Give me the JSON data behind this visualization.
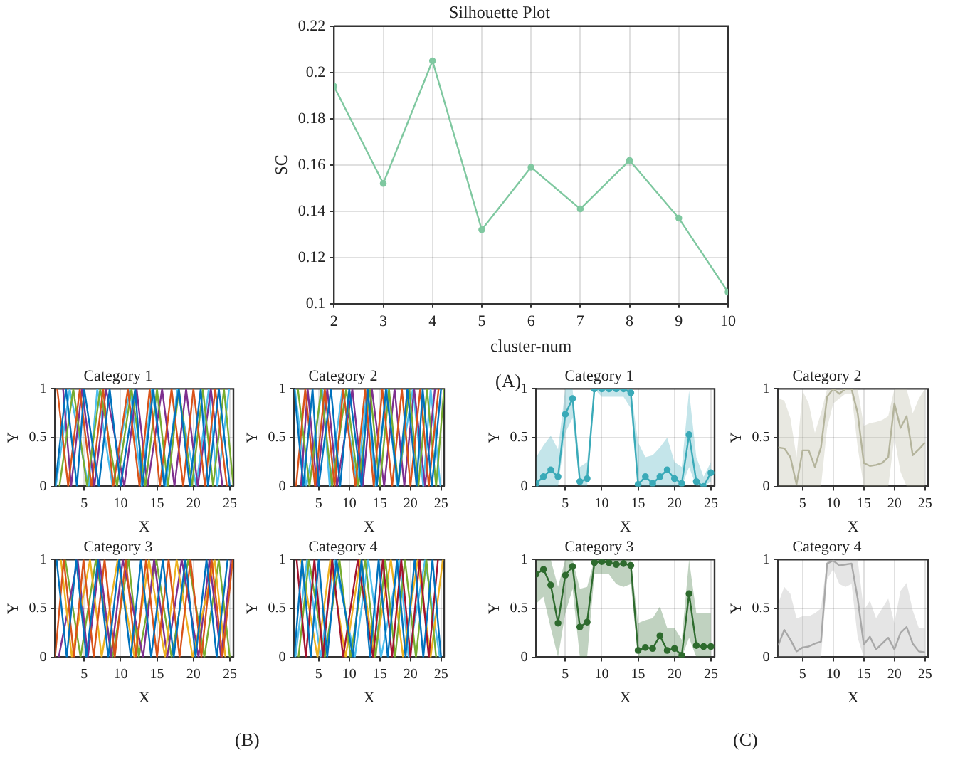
{
  "chart_data": [
    {
      "type": "line",
      "title": "Silhouette Plot",
      "xlabel": "cluster-num",
      "ylabel": "SC",
      "x": [
        2,
        3,
        4,
        5,
        6,
        7,
        8,
        9,
        10
      ],
      "series": [
        {
          "color": "#7fc8a0",
          "values": [
            0.194,
            0.152,
            0.205,
            0.132,
            0.159,
            0.141,
            0.162,
            0.137,
            0.105
          ]
        }
      ],
      "xlim": [
        2,
        10
      ],
      "xticks": [
        2,
        3,
        4,
        5,
        6,
        7,
        8,
        9,
        10
      ],
      "ylim": [
        0.1,
        0.22
      ],
      "yticks": [
        0.1,
        0.12,
        0.14,
        0.16,
        0.18,
        0.2,
        0.22
      ],
      "grid": true,
      "marker": "circle",
      "annotations": [
        "(A)"
      ]
    },
    {
      "type": "line",
      "title": "Category 1",
      "xlabel": "X",
      "ylabel": "Y",
      "series": [
        {
          "color": "#0072bd",
          "x": [
            1,
            2.5,
            4,
            5,
            7,
            8.5,
            10,
            12,
            13,
            14.5,
            16,
            18,
            19.5,
            21,
            22,
            23.5,
            25
          ],
          "values": [
            0,
            1,
            0,
            1,
            0,
            1,
            0,
            1,
            0,
            1,
            0,
            1,
            0,
            1,
            0,
            1,
            0
          ]
        },
        {
          "color": "#d95319",
          "x": [
            1.3,
            2.8,
            4.4,
            6,
            7.6,
            9,
            11,
            12.6,
            14,
            15.4,
            17,
            18.6,
            20,
            21.6,
            23,
            24.6
          ],
          "values": [
            1,
            0,
            1,
            0,
            1,
            0,
            1,
            0,
            1,
            0,
            1,
            0,
            1,
            0,
            1,
            0
          ]
        },
        {
          "color": "#77ac30",
          "x": [
            1.6,
            3.5,
            5.4,
            7.2,
            9.5,
            11.5,
            13.4,
            15,
            16.5,
            18,
            19.8,
            21.3,
            22.7,
            24.2,
            25.5
          ],
          "values": [
            0,
            1,
            0,
            1,
            0,
            1,
            0,
            1,
            0,
            1,
            0,
            1,
            0,
            1,
            0
          ]
        },
        {
          "color": "#7e2f8e",
          "x": [
            2.1,
            3.2,
            4.7,
            6.4,
            8,
            10.5,
            12.2,
            13.7,
            15.7,
            17.4,
            19,
            20.6,
            22.4,
            24
          ],
          "values": [
            1,
            0,
            1,
            0,
            1,
            0,
            1,
            0,
            1,
            0,
            1,
            0,
            1,
            0
          ]
        },
        {
          "color": "#4dbeee",
          "x": [
            1.1,
            3,
            5.6,
            6.8,
            8.9,
            11.3,
            12.9,
            14.3,
            16.2,
            17.8,
            20.4,
            22.1,
            23.3,
            24.9
          ],
          "values": [
            0,
            1,
            0,
            1,
            0,
            1,
            0,
            1,
            0,
            1,
            0,
            1,
            0,
            1
          ]
        }
      ],
      "xlim": [
        1,
        25.5
      ],
      "xticks": [
        5,
        10,
        15,
        20,
        25
      ],
      "ylim": [
        0,
        1
      ],
      "yticks": [
        0,
        0.5,
        1
      ],
      "grid": true
    },
    {
      "type": "line",
      "title": "Category 2",
      "xlabel": "X",
      "ylabel": "Y",
      "series": [
        {
          "color": "#0072bd",
          "x": [
            1,
            2.5,
            4,
            5,
            7,
            8.5,
            10,
            12,
            13,
            14.5,
            16,
            18,
            19.5,
            21,
            22,
            23.5,
            25
          ],
          "values": [
            1,
            0,
            1,
            0,
            1,
            0,
            1,
            0,
            1,
            0,
            1,
            0,
            1,
            0,
            1,
            0,
            1
          ]
        },
        {
          "color": "#d95319",
          "x": [
            1.3,
            2.8,
            4.4,
            6,
            7.6,
            9,
            11,
            12.6,
            14,
            15.4,
            17,
            18.6,
            20,
            21.6,
            23,
            24.6
          ],
          "values": [
            0,
            1,
            0,
            1,
            0,
            1,
            0,
            1,
            0,
            1,
            0,
            1,
            0,
            1,
            0,
            1
          ]
        },
        {
          "color": "#77ac30",
          "x": [
            1.6,
            3.5,
            5.4,
            7.2,
            9.5,
            11.5,
            13.4,
            15,
            16.5,
            18,
            19.8,
            21.3,
            22.7,
            24.2,
            25.5
          ],
          "values": [
            1,
            0,
            1,
            0,
            1,
            0,
            1,
            0,
            1,
            0,
            1,
            0,
            1,
            0,
            1
          ]
        },
        {
          "color": "#7e2f8e",
          "x": [
            2.1,
            3.2,
            4.7,
            6.4,
            8,
            10.5,
            12.2,
            13.7,
            15.7,
            17.4,
            19,
            20.6,
            22.4,
            24
          ],
          "values": [
            0,
            1,
            0,
            1,
            0,
            1,
            0,
            1,
            0,
            1,
            0,
            1,
            0,
            1
          ]
        },
        {
          "color": "#4dbeee",
          "x": [
            1.1,
            3,
            5.6,
            6.8,
            8.9,
            11.3,
            12.9,
            14.3,
            16.2,
            17.8,
            20.4,
            22.1,
            23.3,
            24.9
          ],
          "values": [
            1,
            0,
            1,
            0,
            1,
            0,
            1,
            0,
            1,
            0,
            1,
            0,
            1,
            0
          ]
        }
      ],
      "xlim": [
        1,
        25.5
      ],
      "xticks": [
        5,
        10,
        15,
        20,
        25
      ],
      "ylim": [
        0,
        1
      ],
      "yticks": [
        0,
        0.5,
        1
      ],
      "grid": true
    },
    {
      "type": "line",
      "title": "Category 1",
      "xlabel": "X",
      "ylabel": "Y",
      "x": [
        1,
        2,
        3,
        4,
        5,
        6,
        7,
        8,
        9,
        10,
        11,
        12,
        13,
        14,
        15,
        16,
        17,
        18,
        19,
        20,
        21,
        22,
        23,
        24,
        25
      ],
      "series": [
        {
          "color": "#3aaab8",
          "values": [
            0.03,
            0.1,
            0.17,
            0.1,
            0.74,
            0.9,
            0.05,
            0.08,
            1.0,
            1.0,
            1.0,
            1.0,
            1.0,
            0.96,
            0.02,
            0.1,
            0.03,
            0.1,
            0.17,
            0.08,
            0.03,
            0.53,
            0.05,
            0.0,
            0.14
          ],
          "lower": [
            0,
            0,
            0,
            0,
            0.55,
            0.7,
            0,
            0,
            1,
            0.92,
            0.92,
            0.92,
            0.92,
            0.8,
            0,
            0,
            0,
            0,
            0,
            0,
            0,
            0.2,
            0,
            0,
            0.05
          ],
          "upper": [
            0.3,
            0.42,
            0.52,
            0.38,
            1,
            1,
            0.2,
            0.25,
            1,
            1,
            1,
            1,
            1,
            1,
            0.45,
            0.3,
            0.32,
            0.4,
            0.5,
            0.25,
            0.2,
            0.98,
            0.3,
            0.1,
            0.25
          ]
        }
      ],
      "xlim": [
        1,
        25.5
      ],
      "xticks": [
        5,
        10,
        15,
        20,
        25
      ],
      "ylim": [
        0,
        1
      ],
      "yticks": [
        0,
        0.5,
        1
      ],
      "grid": true,
      "marker": "circle"
    },
    {
      "type": "line",
      "title": "Category 2",
      "xlabel": "X",
      "ylabel": "Y",
      "x": [
        1,
        2,
        3,
        4,
        5,
        6,
        7,
        8,
        9,
        10,
        11,
        12,
        13,
        14,
        15,
        16,
        17,
        18,
        19,
        20,
        21,
        22,
        23,
        24,
        25
      ],
      "series": [
        {
          "color": "#b4b49c",
          "values": [
            0.4,
            0.39,
            0.3,
            0.02,
            0.37,
            0.37,
            0.2,
            0.4,
            0.92,
            1.0,
            0.95,
            1.0,
            1.0,
            0.75,
            0.24,
            0.21,
            0.22,
            0.24,
            0.3,
            0.85,
            0.6,
            0.72,
            0.32,
            0.38,
            0.45
          ],
          "lower": [
            0,
            0,
            0,
            0,
            0,
            0,
            0,
            0,
            0.6,
            0.85,
            0.9,
            0.95,
            0.95,
            0.4,
            0,
            0,
            0,
            0,
            0,
            0.5,
            0.15,
            0,
            0,
            0,
            0
          ],
          "upper": [
            0.9,
            0.88,
            0.7,
            0.3,
            0.98,
            0.85,
            0.55,
            0.75,
            1,
            1,
            1,
            1,
            1,
            1,
            0.62,
            0.65,
            0.66,
            0.68,
            0.72,
            1,
            1,
            1,
            0.75,
            0.9,
            1.0
          ]
        }
      ],
      "xlim": [
        1,
        25.5
      ],
      "xticks": [
        5,
        10,
        15,
        20,
        25
      ],
      "ylim": [
        0,
        1
      ],
      "yticks": [
        0,
        0.5,
        1
      ],
      "grid": true
    },
    {
      "type": "line",
      "title": "Category 3",
      "xlabel": "X",
      "ylabel": "Y",
      "series": [
        {
          "color": "#0072bd",
          "x": [
            1.2,
            2.6,
            3.9,
            5.3,
            6.9,
            8.3,
            9.8,
            11.4,
            12.8,
            14.2,
            15.8,
            17.3,
            18.9,
            20.3,
            21.8,
            23.2,
            24.7
          ],
          "values": [
            1,
            0,
            1,
            0,
            1,
            0,
            1,
            0,
            1,
            0,
            1,
            0,
            1,
            0,
            1,
            0,
            1
          ]
        },
        {
          "color": "#d95319",
          "x": [
            1,
            2.2,
            3.6,
            4.9,
            6.3,
            7.8,
            9.2,
            10.7,
            12.1,
            13.5,
            15,
            16.6,
            18.1,
            19.6,
            21.1,
            22.5,
            24,
            25.4
          ],
          "values": [
            0,
            1,
            0,
            1,
            0,
            1,
            0,
            1,
            0,
            1,
            0,
            1,
            0,
            1,
            0,
            1,
            0,
            1
          ]
        },
        {
          "color": "#edb120",
          "x": [
            1.8,
            3.3,
            5.8,
            7.4,
            9.6,
            11.9,
            13.9,
            16.1,
            17.7,
            19.9,
            22.9,
            24.4
          ],
          "values": [
            1,
            0,
            1,
            0,
            1,
            0,
            1,
            0,
            1,
            0,
            1,
            0
          ]
        },
        {
          "color": "#7e2f8e",
          "x": [
            1.5,
            4.1,
            5.5,
            7.1,
            8.7,
            10.3,
            13.1,
            14.6,
            16.4,
            18.4,
            20.7,
            22.2,
            23.8,
            25.2
          ],
          "values": [
            0,
            1,
            0,
            1,
            0,
            1,
            0,
            1,
            0,
            1,
            0,
            1,
            0,
            1
          ]
        },
        {
          "color": "#77ac30",
          "x": [
            2.4,
            4.5,
            6.6,
            8.9,
            11.1,
            12.5,
            14.9,
            17,
            19.3,
            21.5,
            23.5,
            25
          ],
          "values": [
            1,
            0,
            1,
            0,
            1,
            0,
            1,
            0,
            1,
            0,
            1,
            0
          ]
        }
      ],
      "xlim": [
        1,
        25.5
      ],
      "xticks": [
        5,
        10,
        15,
        20,
        25
      ],
      "ylim": [
        0,
        1
      ],
      "yticks": [
        0,
        0.5,
        1
      ],
      "grid": true,
      "annotations": [
        "(B)"
      ]
    },
    {
      "type": "line",
      "title": "Category 4",
      "xlabel": "X",
      "ylabel": "Y",
      "series": [
        {
          "color": "#0072bd",
          "x": [
            1,
            2.3,
            3.7,
            5,
            6.4,
            7.9,
            10.6,
            12,
            13.4,
            14.8,
            16.3,
            17.8,
            19.2,
            20.7,
            22.1,
            23.6,
            25
          ],
          "values": [
            0,
            1,
            0,
            1,
            0,
            1,
            0,
            1,
            0,
            1,
            0,
            1,
            0,
            1,
            0,
            1,
            0
          ]
        },
        {
          "color": "#a2142f",
          "x": [
            1.4,
            2.9,
            4.3,
            5.7,
            7.2,
            9,
            11.4,
            13.9,
            15.5,
            17,
            18.5,
            20,
            21.5,
            23,
            24.5
          ],
          "values": [
            1,
            0,
            1,
            0,
            1,
            0,
            1,
            0,
            1,
            0,
            1,
            0,
            1,
            0,
            1
          ]
        },
        {
          "color": "#77ac30",
          "x": [
            1.7,
            3.4,
            6,
            8.4,
            10.2,
            12.6,
            14.3,
            15.9,
            17.5,
            19.1,
            20.9,
            22.6,
            24.2
          ],
          "values": [
            0,
            1,
            0,
            1,
            0,
            1,
            0,
            1,
            0,
            1,
            0,
            1,
            0
          ]
        },
        {
          "color": "#edb120",
          "x": [
            2.1,
            4.8,
            6.9,
            9.4,
            11.8,
            14.1,
            16.8,
            18.8,
            21.2,
            23.3,
            25.3
          ],
          "values": [
            1,
            0,
            1,
            0,
            1,
            0,
            1,
            0,
            1,
            0,
            1
          ]
        },
        {
          "color": "#4dbeee",
          "x": [
            1.2,
            3.1,
            5.3,
            7.6,
            10.9,
            13.1,
            15.2,
            18.2,
            19.7,
            22.4,
            24.8
          ],
          "values": [
            0,
            1,
            0,
            1,
            0,
            1,
            0,
            1,
            0,
            1,
            0
          ]
        }
      ],
      "xlim": [
        1,
        25.5
      ],
      "xticks": [
        5,
        10,
        15,
        20,
        25
      ],
      "ylim": [
        0,
        1
      ],
      "yticks": [
        0,
        0.5,
        1
      ],
      "grid": true
    },
    {
      "type": "line",
      "title": "Category 3",
      "xlabel": "X",
      "ylabel": "Y",
      "x": [
        1,
        2,
        3,
        4,
        5,
        6,
        7,
        8,
        9,
        10,
        11,
        12,
        13,
        14,
        15,
        16,
        17,
        18,
        19,
        20,
        21,
        22,
        23,
        24,
        25
      ],
      "series": [
        {
          "color": "#2e6b2e",
          "values": [
            0.85,
            0.9,
            0.74,
            0.35,
            0.84,
            0.93,
            0.31,
            0.36,
            0.97,
            0.98,
            0.97,
            0.95,
            0.96,
            0.94,
            0.07,
            0.1,
            0.09,
            0.22,
            0.07,
            0.09,
            0.02,
            0.65,
            0.12,
            0.11,
            0.11
          ],
          "lower": [
            0.55,
            0.62,
            0.3,
            0,
            0.45,
            0.7,
            0,
            0,
            0.85,
            0.85,
            0.85,
            0.75,
            0.72,
            0.75,
            0,
            0,
            0,
            0,
            0,
            0,
            0,
            0.2,
            0,
            0,
            0
          ],
          "upper": [
            1,
            1,
            1,
            0.72,
            1,
            1,
            0.7,
            0.72,
            1,
            1,
            1,
            1,
            1,
            1,
            0.35,
            0.38,
            0.4,
            0.52,
            0.3,
            0.3,
            0.18,
            1,
            0.45,
            0.45,
            0.45
          ]
        }
      ],
      "xlim": [
        1,
        25.5
      ],
      "xticks": [
        5,
        10,
        15,
        20,
        25
      ],
      "ylim": [
        0,
        1
      ],
      "yticks": [
        0,
        0.5,
        1
      ],
      "grid": true,
      "marker": "circle",
      "annotations": [
        "(C)"
      ]
    },
    {
      "type": "line",
      "title": "Category 4",
      "xlabel": "X",
      "ylabel": "Y",
      "x": [
        1,
        2,
        3,
        4,
        5,
        6,
        7,
        8,
        9,
        10,
        11,
        12,
        13,
        14,
        15,
        16,
        17,
        18,
        19,
        20,
        21,
        22,
        23,
        24,
        25
      ],
      "series": [
        {
          "color": "#a8a8a8",
          "values": [
            0.12,
            0.28,
            0.18,
            0.06,
            0.1,
            0.11,
            0.14,
            0.16,
            0.96,
            0.99,
            0.94,
            0.95,
            0.96,
            0.6,
            0.13,
            0.21,
            0.08,
            0.14,
            0.2,
            0.08,
            0.25,
            0.31,
            0.14,
            0.06,
            0.05
          ],
          "lower": [
            0,
            0,
            0,
            0,
            0,
            0,
            0,
            0,
            0.8,
            0.9,
            0.75,
            0.72,
            0.75,
            0.2,
            0,
            0,
            0,
            0,
            0,
            0,
            0,
            0,
            0,
            0,
            0
          ],
          "upper": [
            0.55,
            0.72,
            0.65,
            0.4,
            0.42,
            0.42,
            0.45,
            0.5,
            1,
            1,
            1,
            1,
            1,
            1,
            0.48,
            0.58,
            0.4,
            0.5,
            0.6,
            0.35,
            0.68,
            0.76,
            0.48,
            0.3,
            0.3
          ]
        }
      ],
      "xlim": [
        1,
        25.5
      ],
      "xticks": [
        5,
        10,
        15,
        20,
        25
      ],
      "ylim": [
        0,
        1
      ],
      "yticks": [
        0,
        0.5,
        1
      ],
      "grid": true
    }
  ]
}
